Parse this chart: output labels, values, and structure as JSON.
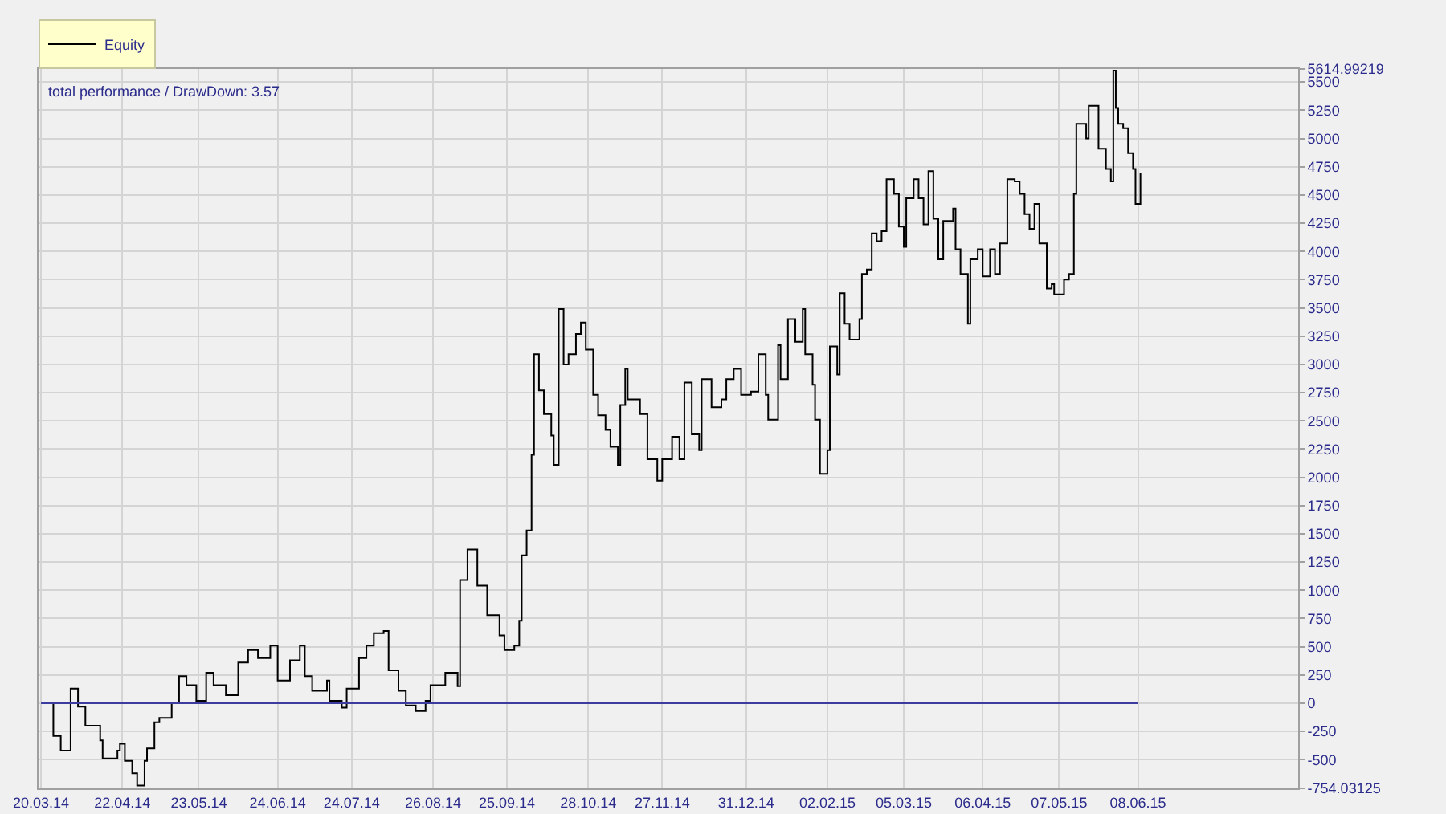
{
  "chart_data": {
    "type": "step",
    "annotations": [
      "total performance / DrawDown: 3.57"
    ],
    "xlim": [
      "2014-03-19",
      "2015-08-12"
    ],
    "xticks": [
      {
        "value": "2014-03-20",
        "label": "20.03.14"
      },
      {
        "value": "2014-04-22",
        "label": "22.04.14"
      },
      {
        "value": "2014-05-23",
        "label": "23.05.14"
      },
      {
        "value": "2014-06-24",
        "label": "24.06.14"
      },
      {
        "value": "2014-07-24",
        "label": "24.07.14"
      },
      {
        "value": "2014-08-26",
        "label": "26.08.14"
      },
      {
        "value": "2014-09-25",
        "label": "25.09.14"
      },
      {
        "value": "2014-10-28",
        "label": "28.10.14"
      },
      {
        "value": "2014-11-27",
        "label": "27.11.14"
      },
      {
        "value": "2014-12-31",
        "label": "31.12.14"
      },
      {
        "value": "2015-02-02",
        "label": "02.02.15"
      },
      {
        "value": "2015-03-05",
        "label": "05.03.15"
      },
      {
        "value": "2015-04-06",
        "label": "06.04.15"
      },
      {
        "value": "2015-05-07",
        "label": "07.05.15"
      },
      {
        "value": "2015-06-08",
        "label": "08.06.15"
      }
    ],
    "ylim": [
      -754.03125,
      5614.99219
    ],
    "yticks": [
      -754.03125,
      -500,
      -250,
      0,
      250,
      500,
      750,
      1000,
      1250,
      1500,
      1750,
      2000,
      2250,
      2500,
      2750,
      3000,
      3250,
      3500,
      3750,
      4000,
      4250,
      4500,
      4750,
      5000,
      5250,
      5500,
      5614.99219
    ],
    "grid": true,
    "legend": "top left",
    "series": [
      {
        "name": "Equity",
        "color": "#000000",
        "x": [
          "2014-03-21",
          "2014-03-25",
          "2014-03-28",
          "2014-04-01",
          "2014-04-04",
          "2014-04-07",
          "2014-04-13",
          "2014-04-14",
          "2014-04-20",
          "2014-04-21",
          "2014-04-23",
          "2014-04-26",
          "2014-04-28",
          "2014-05-01",
          "2014-05-02",
          "2014-05-05",
          "2014-05-07",
          "2014-05-12",
          "2014-05-15",
          "2014-05-18",
          "2014-05-22",
          "2014-05-26",
          "2014-05-29",
          "2014-06-03",
          "2014-06-08",
          "2014-06-12",
          "2014-06-16",
          "2014-06-21",
          "2014-06-24",
          "2014-06-29",
          "2014-07-03",
          "2014-07-05",
          "2014-07-08",
          "2014-07-14",
          "2014-07-15",
          "2014-07-20",
          "2014-07-22",
          "2014-07-27",
          "2014-07-30",
          "2014-08-02",
          "2014-08-06",
          "2014-08-08",
          "2014-08-12",
          "2014-08-15",
          "2014-08-19",
          "2014-08-23",
          "2014-08-25",
          "2014-08-31",
          "2014-09-05",
          "2014-09-06",
          "2014-09-09",
          "2014-09-13",
          "2014-09-17",
          "2014-09-22",
          "2014-09-24",
          "2014-09-28",
          "2014-09-30",
          "2014-10-01",
          "2014-10-03",
          "2014-10-05",
          "2014-10-06",
          "2014-10-08",
          "2014-10-10",
          "2014-10-13",
          "2014-10-14",
          "2014-10-16",
          "2014-10-18",
          "2014-10-20",
          "2014-10-23",
          "2014-10-25",
          "2014-10-27",
          "2014-10-30",
          "2014-11-01",
          "2014-11-04",
          "2014-11-06",
          "2014-11-09",
          "2014-11-10",
          "2014-11-12",
          "2014-11-13",
          "2014-11-18",
          "2014-11-21",
          "2014-11-25",
          "2014-11-27",
          "2014-12-01",
          "2014-12-04",
          "2014-12-06",
          "2014-12-09",
          "2014-12-12",
          "2014-12-13",
          "2014-12-17",
          "2014-12-21",
          "2014-12-23",
          "2014-12-26",
          "2014-12-29",
          "2015-01-02",
          "2015-01-05",
          "2015-01-08",
          "2015-01-09",
          "2015-01-13",
          "2015-01-14",
          "2015-01-17",
          "2015-01-20",
          "2015-01-23",
          "2015-01-24",
          "2015-01-27",
          "2015-01-28",
          "2015-01-30",
          "2015-02-02",
          "2015-02-03",
          "2015-02-06",
          "2015-02-07",
          "2015-02-09",
          "2015-02-11",
          "2015-02-15",
          "2015-02-16",
          "2015-02-18",
          "2015-02-20",
          "2015-02-22",
          "2015-02-24",
          "2015-02-26",
          "2015-03-01",
          "2015-03-03",
          "2015-03-05",
          "2015-03-06",
          "2015-03-09",
          "2015-03-11",
          "2015-03-13",
          "2015-03-15",
          "2015-03-17",
          "2015-03-19",
          "2015-03-21",
          "2015-03-25",
          "2015-03-26",
          "2015-03-28",
          "2015-03-31",
          "2015-04-01",
          "2015-04-04",
          "2015-04-06",
          "2015-04-09",
          "2015-04-11",
          "2015-04-13",
          "2015-04-16",
          "2015-04-19",
          "2015-04-21",
          "2015-04-23",
          "2015-04-25",
          "2015-04-27",
          "2015-04-29",
          "2015-05-02",
          "2015-05-04",
          "2015-05-05",
          "2015-05-09",
          "2015-05-11",
          "2015-05-13",
          "2015-05-14",
          "2015-05-18",
          "2015-05-19",
          "2015-05-23",
          "2015-05-26",
          "2015-05-28",
          "2015-05-29",
          "2015-05-30",
          "2015-05-31",
          "2015-06-02",
          "2015-06-04",
          "2015-06-06",
          "2015-06-07",
          "2015-06-09"
        ],
        "values": [
          0,
          -290,
          -420,
          130,
          -30,
          -200,
          -330,
          -490,
          -420,
          -360,
          -510,
          -620,
          -730,
          -510,
          -400,
          -170,
          -130,
          0,
          240,
          160,
          20,
          270,
          160,
          70,
          360,
          470,
          400,
          510,
          200,
          380,
          510,
          240,
          110,
          200,
          20,
          -40,
          130,
          400,
          510,
          620,
          640,
          290,
          110,
          -20,
          -70,
          20,
          160,
          270,
          150,
          1090,
          1360,
          1040,
          780,
          600,
          470,
          510,
          730,
          1310,
          1530,
          2200,
          3090,
          2770,
          2560,
          2370,
          2110,
          3490,
          3000,
          3090,
          3270,
          3370,
          3130,
          2730,
          2550,
          2420,
          2270,
          2110,
          2640,
          2960,
          2690,
          2560,
          2160,
          1970,
          2160,
          2360,
          2160,
          2840,
          2380,
          2240,
          2870,
          2620,
          2690,
          2870,
          2960,
          2730,
          2760,
          3090,
          2730,
          2510,
          3170,
          2870,
          3400,
          3200,
          3490,
          3090,
          2820,
          2510,
          2030,
          2240,
          3160,
          2910,
          3630,
          3360,
          3220,
          3400,
          3800,
          3840,
          4160,
          4090,
          4180,
          4640,
          4510,
          4220,
          4040,
          4470,
          4640,
          4470,
          4240,
          4710,
          4290,
          3930,
          4270,
          4380,
          4020,
          3800,
          3360,
          3930,
          4020,
          3780,
          4020,
          3800,
          4070,
          4640,
          4620,
          4510,
          4330,
          4200,
          4420,
          4070,
          3670,
          3710,
          3620,
          3750,
          3800,
          4510,
          5130,
          5000,
          5290,
          4910,
          4730,
          4620,
          5600,
          5270,
          5130,
          5090,
          4870,
          4730,
          4420,
          4690
        ]
      },
      {
        "type": "line",
        "color": "#3c3ca0",
        "x": [
          "2014-03-20",
          "2015-06-08"
        ],
        "values": [
          0,
          0
        ]
      }
    ]
  }
}
